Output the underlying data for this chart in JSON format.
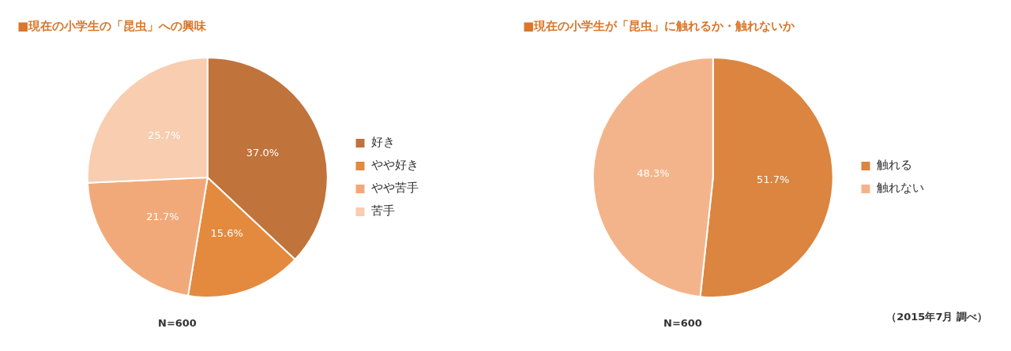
{
  "chart_data": [
    {
      "type": "pie",
      "title": "■現在の小学生の「昆虫」への興味",
      "categories": [
        "好き",
        "やや好き",
        "やや苦手",
        "苦手"
      ],
      "values": [
        37.0,
        15.6,
        21.7,
        25.7
      ],
      "colors": [
        "#c0733a",
        "#e48a3e",
        "#f2a97a",
        "#f8cdb0"
      ],
      "value_labels": [
        "37.0%",
        "15.6%",
        "21.7%",
        "25.7%"
      ],
      "legend": "right",
      "annotations": [
        "N=600"
      ]
    },
    {
      "type": "pie",
      "title": "■現在の小学生が「昆虫」に触れるか・触れないか",
      "categories": [
        "触れる",
        "触れない"
      ],
      "values": [
        51.7,
        48.3
      ],
      "colors": [
        "#db8540",
        "#f4b48b"
      ],
      "value_labels": [
        "51.7%",
        "48.3%"
      ],
      "legend": "right",
      "annotations": [
        "N=600",
        "（2015年7月 調べ）"
      ]
    }
  ]
}
